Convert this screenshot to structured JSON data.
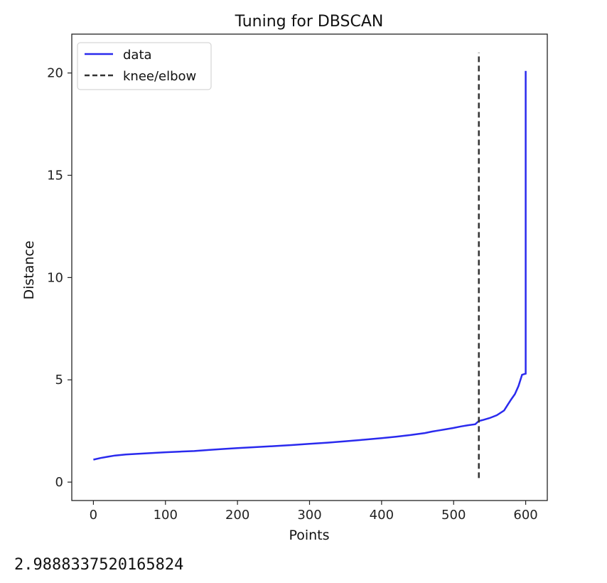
{
  "chart_data": {
    "type": "line",
    "title": "Tuning for DBSCAN",
    "xlabel": "Points",
    "ylabel": "Distance",
    "xlim": [
      -30,
      630
    ],
    "ylim": [
      -0.9,
      21.9
    ],
    "xticks": [
      0,
      100,
      200,
      300,
      400,
      500,
      600
    ],
    "yticks": [
      0,
      5,
      10,
      15,
      20
    ],
    "grid": false,
    "legend_position": "top-left",
    "series": [
      {
        "name": "data",
        "color": "#2a2aee",
        "style": "solid",
        "x": [
          0,
          10,
          20,
          30,
          45,
          60,
          80,
          100,
          120,
          140,
          160,
          180,
          200,
          225,
          250,
          275,
          300,
          325,
          350,
          375,
          400,
          420,
          440,
          460,
          470,
          480,
          490,
          500,
          510,
          520,
          530,
          535,
          540,
          550,
          560,
          570,
          575,
          580,
          585,
          590,
          595,
          600,
          600
        ],
        "y": [
          1.1,
          1.18,
          1.24,
          1.3,
          1.35,
          1.38,
          1.42,
          1.46,
          1.49,
          1.52,
          1.57,
          1.62,
          1.66,
          1.71,
          1.76,
          1.81,
          1.87,
          1.93,
          2.0,
          2.07,
          2.15,
          2.22,
          2.3,
          2.4,
          2.47,
          2.53,
          2.59,
          2.65,
          2.72,
          2.78,
          2.83,
          2.99,
          3.03,
          3.13,
          3.27,
          3.5,
          3.78,
          4.05,
          4.3,
          4.7,
          5.25,
          5.3,
          20.1
        ]
      },
      {
        "name": "knee/elbow",
        "color": "#333333",
        "style": "dashed",
        "x": [
          535,
          535
        ],
        "y": [
          0.2,
          21.0
        ]
      }
    ]
  },
  "output_text": "2.9888337520165824"
}
